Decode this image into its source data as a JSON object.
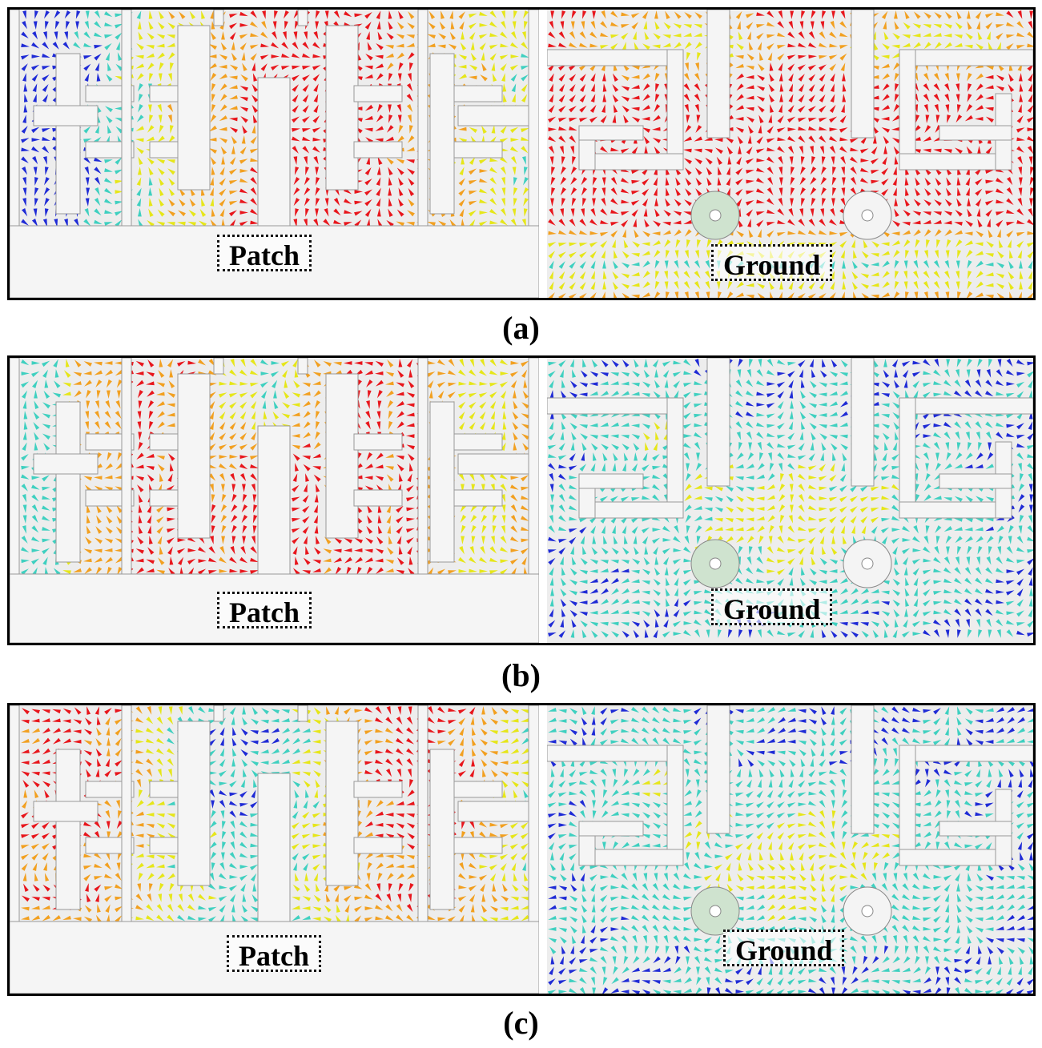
{
  "figure": {
    "rows": [
      {
        "id": "a",
        "caption": "(a)",
        "patch_label": "Patch",
        "ground_label": "Ground",
        "patch_dominant": "red-center",
        "ground_dominant": "red"
      },
      {
        "id": "b",
        "caption": "(b)",
        "patch_label": "Patch",
        "ground_label": "Ground",
        "patch_dominant": "red-wide",
        "ground_dominant": "blue"
      },
      {
        "id": "c",
        "caption": "(c)",
        "patch_label": "Patch",
        "ground_label": "Ground",
        "patch_dominant": "mixed",
        "ground_dominant": "blue"
      }
    ],
    "colors": {
      "high": "#e8161c",
      "mid_high": "#f2a020",
      "mid": "#e6e619",
      "mid_low": "#3fd0c0",
      "low": "#1f2bd6",
      "metal_background": "#ededed",
      "slot": "#f5f5f5",
      "via": "#cfe3cf"
    },
    "icons": [
      "surface-current-arrow",
      "via-pad"
    ]
  }
}
